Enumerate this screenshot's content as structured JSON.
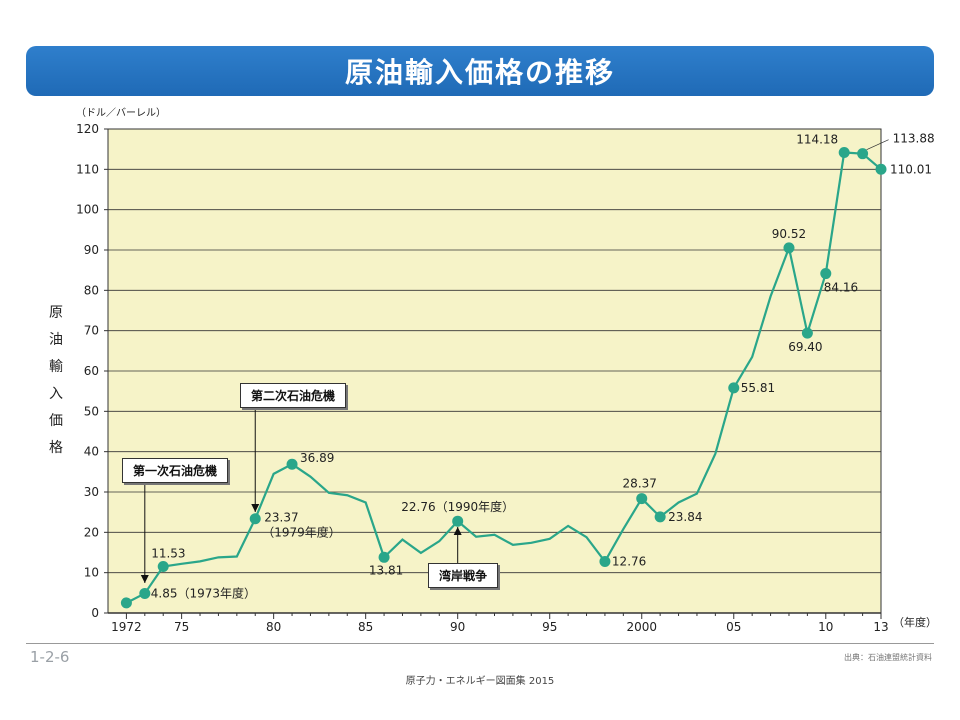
{
  "title": "原油輸入価格の推移",
  "unit": "（ドル／バーレル）",
  "ylabel": "原油輸入価格",
  "xunit": "（年度）",
  "callouts": {
    "first": "第一次石油危機",
    "second": "第二次石油危機",
    "gulf": "湾岸戦争"
  },
  "footer": {
    "page": "1-2-6",
    "source": "出典：石油連盟統計資料",
    "book": "原子力・エネルギー図面集 2015"
  },
  "colors": {
    "line": "#2aa68a",
    "plot_bg": "#f6f3c8",
    "title_bg": "#2a78c6"
  },
  "chart_data": {
    "type": "line",
    "ylim": [
      0,
      120
    ],
    "yticks": [
      0,
      10,
      20,
      30,
      40,
      50,
      60,
      70,
      80,
      90,
      100,
      110,
      120
    ],
    "xlim": [
      1971,
      2013
    ],
    "xticks": [
      {
        "x": 1972,
        "label": "1972"
      },
      {
        "x": 1975,
        "label": "75"
      },
      {
        "x": 1980,
        "label": "80"
      },
      {
        "x": 1985,
        "label": "85"
      },
      {
        "x": 1990,
        "label": "90"
      },
      {
        "x": 1995,
        "label": "95"
      },
      {
        "x": 2000,
        "label": "2000"
      },
      {
        "x": 2005,
        "label": "05"
      },
      {
        "x": 2010,
        "label": "10"
      },
      {
        "x": 2013,
        "label": "13"
      }
    ],
    "grid": true,
    "series": [
      {
        "x": [
          1972,
          1973,
          1974,
          1975,
          1976,
          1977,
          1978,
          1979,
          1980,
          1981,
          1982,
          1983,
          1984,
          1985,
          1986,
          1987,
          1988,
          1989,
          1990,
          1991,
          1992,
          1993,
          1994,
          1995,
          1996,
          1997,
          1998,
          1999,
          2000,
          2001,
          2002,
          2003,
          2004,
          2005,
          2006,
          2007,
          2008,
          2009,
          2010,
          2011,
          2012,
          2013
        ],
        "y": [
          2.5,
          4.85,
          11.53,
          12.2,
          12.8,
          13.8,
          14.0,
          23.37,
          34.5,
          36.89,
          33.8,
          29.8,
          29.2,
          27.4,
          13.81,
          18.2,
          14.9,
          17.8,
          22.76,
          18.9,
          19.4,
          16.9,
          17.4,
          18.4,
          21.6,
          18.8,
          12.76,
          20.8,
          28.37,
          23.84,
          27.4,
          29.6,
          39.5,
          55.81,
          63.5,
          78.5,
          90.52,
          69.4,
          84.16,
          114.18,
          113.88,
          110.01
        ],
        "markers": [
          1972,
          1973,
          1974,
          1979,
          1981,
          1986,
          1990,
          1998,
          2000,
          2001,
          2005,
          2008,
          2009,
          2010,
          2011,
          2012,
          2013
        ]
      }
    ],
    "labels": [
      {
        "x": 1973,
        "text": "4.85（1973年度）"
      },
      {
        "x": 1974,
        "text": "11.53"
      },
      {
        "x": 1979,
        "text": "23.37"
      },
      {
        "x": 1979,
        "text": "（1979年度）"
      },
      {
        "x": 1981,
        "text": "36.89"
      },
      {
        "x": 1986,
        "text": "13.81"
      },
      {
        "x": 1990,
        "text": "22.76（1990年度）"
      },
      {
        "x": 1998,
        "text": "12.76"
      },
      {
        "x": 2000,
        "text": "28.37"
      },
      {
        "x": 2001,
        "text": "23.84"
      },
      {
        "x": 2005,
        "text": "55.81"
      },
      {
        "x": 2008,
        "text": "90.52"
      },
      {
        "x": 2009,
        "text": "69.40"
      },
      {
        "x": 2010,
        "text": "84.16"
      },
      {
        "x": 2011,
        "text": "114.18"
      },
      {
        "x": 2012,
        "text": "113.88"
      },
      {
        "x": 2013,
        "text": "110.01"
      }
    ]
  }
}
